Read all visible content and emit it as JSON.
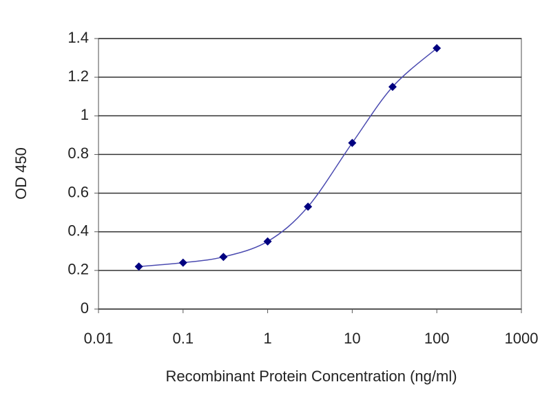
{
  "chart_data": {
    "type": "line",
    "x_label": "Recombinant Protein Concentration (ng/ml)",
    "y_label": "OD 450",
    "x_log": true,
    "xlim": [
      0.01,
      1000
    ],
    "xticks": [
      0.01,
      0.1,
      1,
      10,
      100,
      1000
    ],
    "ylim": [
      0,
      1.4
    ],
    "yticks": [
      0,
      0.2,
      0.4,
      0.6,
      0.8,
      1,
      1.2,
      1.4
    ],
    "grid": true,
    "series": [
      {
        "name": "OD 450",
        "color": "#000080",
        "line_color": "#4a4ab0",
        "x": [
          0.03,
          0.1,
          0.3,
          1,
          3,
          10,
          30,
          100
        ],
        "values": [
          0.22,
          0.24,
          0.27,
          0.35,
          0.53,
          0.86,
          1.15,
          1.35
        ]
      }
    ]
  }
}
